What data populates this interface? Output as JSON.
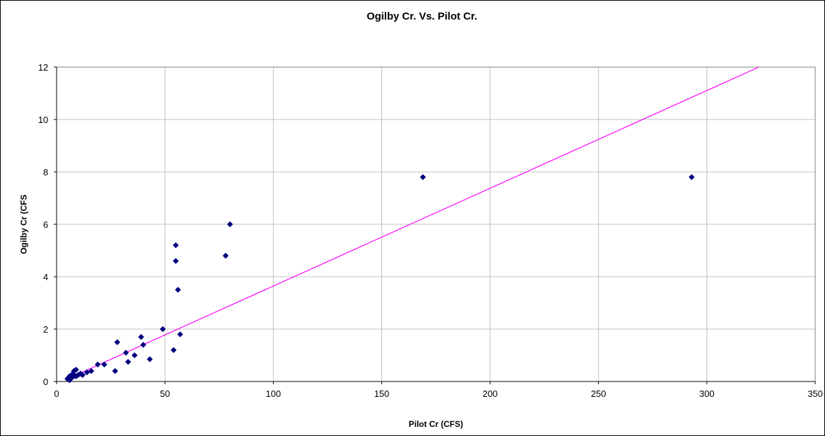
{
  "chart_data": {
    "type": "scatter",
    "title": "Ogilby Cr. Vs. Pilot Cr.",
    "xlabel": "Pilot Cr (CFS)",
    "ylabel": "Ogilby Cr (CFS",
    "xlim": [
      0,
      350
    ],
    "ylim": [
      0,
      12
    ],
    "x_ticks": [
      0,
      50,
      100,
      150,
      200,
      250,
      300,
      350
    ],
    "y_ticks": [
      0,
      2,
      4,
      6,
      8,
      10,
      12
    ],
    "grid": true,
    "legend": "none",
    "series": [
      {
        "color": "#000080",
        "marker": "diamond",
        "points": [
          [
            5,
            0.1
          ],
          [
            5.5,
            0.15
          ],
          [
            6,
            0.05
          ],
          [
            6,
            0.2
          ],
          [
            6.5,
            0.1
          ],
          [
            7,
            0.25
          ],
          [
            7,
            0.15
          ],
          [
            7.5,
            0.3
          ],
          [
            8,
            0.2
          ],
          [
            8,
            0.4
          ],
          [
            9,
            0.45
          ],
          [
            9,
            0.2
          ],
          [
            10,
            0.25
          ],
          [
            11,
            0.3
          ],
          [
            12,
            0.25
          ],
          [
            14,
            0.35
          ],
          [
            16,
            0.4
          ],
          [
            19,
            0.65
          ],
          [
            22,
            0.65
          ],
          [
            27,
            0.4
          ],
          [
            28,
            1.5
          ],
          [
            32,
            1.1
          ],
          [
            33,
            0.75
          ],
          [
            36,
            1.0
          ],
          [
            39,
            1.7
          ],
          [
            40,
            1.4
          ],
          [
            43,
            0.85
          ],
          [
            49,
            2.0
          ],
          [
            54,
            1.2
          ],
          [
            55,
            5.2
          ],
          [
            55,
            4.6
          ],
          [
            56,
            3.5
          ],
          [
            57,
            1.8
          ],
          [
            78,
            4.8
          ],
          [
            80,
            6.0
          ],
          [
            169,
            7.8
          ],
          [
            293,
            7.8
          ]
        ]
      }
    ],
    "trendline": {
      "type": "linear",
      "color": "#ff00ff",
      "from": [
        5,
        0.1
      ],
      "to": [
        324,
        12
      ]
    }
  }
}
